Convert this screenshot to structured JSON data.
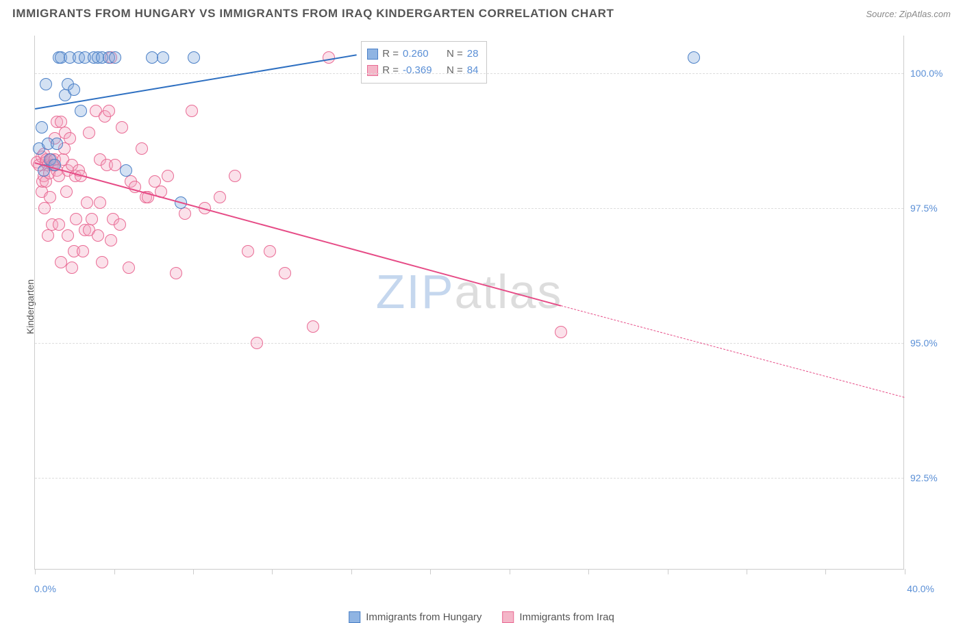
{
  "header": {
    "title": "IMMIGRANTS FROM HUNGARY VS IMMIGRANTS FROM IRAQ KINDERGARTEN CORRELATION CHART",
    "source_prefix": "Source: ",
    "source_name": "ZipAtlas.com"
  },
  "axes": {
    "ylabel": "Kindergarten",
    "xlim": [
      0.0,
      40.0
    ],
    "ylim": [
      90.8,
      100.7
    ],
    "xtick_positions": [
      0,
      3.64,
      7.27,
      10.9,
      14.55,
      18.18,
      21.82,
      25.45,
      29.1,
      32.73,
      36.36,
      40.0
    ],
    "xtick_labels_left": "0.0%",
    "xtick_labels_right": "40.0%",
    "yticks": [
      {
        "v": 92.5,
        "label": "92.5%"
      },
      {
        "v": 95.0,
        "label": "95.0%"
      },
      {
        "v": 97.5,
        "label": "97.5%"
      },
      {
        "v": 100.0,
        "label": "100.0%"
      }
    ],
    "grid_color": "#dddddd",
    "border_color": "#cccccc",
    "tick_label_color": "#5a8fd6"
  },
  "watermark": {
    "part1": "ZIP",
    "part2": "atlas"
  },
  "legend_stats": {
    "rows": [
      {
        "swatch_fill": "#8fb4e3",
        "swatch_stroke": "#4a7fc6",
        "r_label": "R = ",
        "r_value": "0.260",
        "n_label": "N = ",
        "n_value": "28"
      },
      {
        "swatch_fill": "#f4b6c8",
        "swatch_stroke": "#e96a94",
        "r_label": "R = ",
        "r_value": "-0.369",
        "n_label": "N = ",
        "n_value": "84"
      }
    ]
  },
  "bottom_legend": {
    "items": [
      {
        "swatch_fill": "#8fb4e3",
        "swatch_stroke": "#4a7fc6",
        "label": "Immigrants from Hungary"
      },
      {
        "swatch_fill": "#f4b6c8",
        "swatch_stroke": "#e96a94",
        "label": "Immigrants from Iraq"
      }
    ]
  },
  "series": {
    "hungary": {
      "fill": "rgba(130,170,220,0.35)",
      "stroke": "#4a7fc6",
      "marker_radius": 9,
      "line_color": "#2d6fc1",
      "line_width": 2.2,
      "trend": {
        "x1": 0.0,
        "y1": 99.35,
        "x2": 14.8,
        "y2": 100.35
      },
      "points": [
        [
          0.2,
          98.6
        ],
        [
          0.3,
          99.0
        ],
        [
          0.4,
          98.2
        ],
        [
          0.5,
          99.8
        ],
        [
          0.6,
          98.7
        ],
        [
          0.7,
          98.4
        ],
        [
          0.9,
          98.3
        ],
        [
          1.0,
          98.7
        ],
        [
          1.1,
          100.3
        ],
        [
          1.2,
          100.3
        ],
        [
          1.4,
          99.6
        ],
        [
          1.5,
          99.8
        ],
        [
          1.6,
          100.3
        ],
        [
          1.8,
          99.7
        ],
        [
          2.0,
          100.3
        ],
        [
          2.1,
          99.3
        ],
        [
          2.3,
          100.3
        ],
        [
          2.7,
          100.3
        ],
        [
          2.9,
          100.3
        ],
        [
          3.1,
          100.3
        ],
        [
          3.4,
          100.3
        ],
        [
          3.7,
          100.3
        ],
        [
          4.2,
          98.2
        ],
        [
          5.4,
          100.3
        ],
        [
          5.9,
          100.3
        ],
        [
          6.7,
          97.6
        ],
        [
          7.3,
          100.3
        ],
        [
          30.3,
          100.3
        ]
      ]
    },
    "iraq": {
      "fill": "rgba(244,168,194,0.35)",
      "stroke": "#e96a94",
      "marker_radius": 9,
      "line_color": "#e64b86",
      "line_width": 2.2,
      "trend_solid": {
        "x1": 0.0,
        "y1": 98.35,
        "x2": 24.2,
        "y2": 95.7
      },
      "trend_dashed": {
        "x1": 24.2,
        "y1": 95.7,
        "x2": 40.0,
        "y2": 94.0
      },
      "points": [
        [
          0.1,
          98.35
        ],
        [
          0.2,
          98.3
        ],
        [
          0.3,
          97.8
        ],
        [
          0.3,
          98.45
        ],
        [
          0.35,
          98.0
        ],
        [
          0.4,
          98.1
        ],
        [
          0.4,
          98.5
        ],
        [
          0.45,
          97.5
        ],
        [
          0.5,
          98.35
        ],
        [
          0.5,
          98.0
        ],
        [
          0.55,
          98.4
        ],
        [
          0.6,
          97.0
        ],
        [
          0.6,
          98.3
        ],
        [
          0.65,
          98.15
        ],
        [
          0.7,
          98.4
        ],
        [
          0.7,
          97.7
        ],
        [
          0.75,
          98.4
        ],
        [
          0.8,
          98.3
        ],
        [
          0.8,
          97.2
        ],
        [
          0.85,
          98.3
        ],
        [
          0.9,
          98.4
        ],
        [
          0.9,
          98.8
        ],
        [
          1.0,
          98.2
        ],
        [
          1.0,
          99.1
        ],
        [
          1.1,
          97.2
        ],
        [
          1.1,
          98.1
        ],
        [
          1.2,
          99.1
        ],
        [
          1.2,
          96.5
        ],
        [
          1.3,
          98.4
        ],
        [
          1.35,
          98.6
        ],
        [
          1.4,
          98.9
        ],
        [
          1.45,
          97.8
        ],
        [
          1.5,
          98.2
        ],
        [
          1.5,
          97.0
        ],
        [
          1.6,
          98.8
        ],
        [
          1.7,
          96.4
        ],
        [
          1.7,
          98.3
        ],
        [
          1.8,
          96.7
        ],
        [
          1.85,
          98.1
        ],
        [
          1.9,
          97.3
        ],
        [
          2.0,
          98.2
        ],
        [
          2.1,
          98.1
        ],
        [
          2.2,
          96.7
        ],
        [
          2.3,
          97.1
        ],
        [
          2.4,
          97.6
        ],
        [
          2.5,
          98.9
        ],
        [
          2.5,
          97.1
        ],
        [
          2.6,
          97.3
        ],
        [
          2.8,
          99.3
        ],
        [
          2.9,
          97.0
        ],
        [
          3.0,
          98.4
        ],
        [
          3.0,
          97.6
        ],
        [
          3.1,
          96.5
        ],
        [
          3.2,
          99.2
        ],
        [
          3.3,
          98.3
        ],
        [
          3.4,
          99.3
        ],
        [
          3.5,
          96.9
        ],
        [
          3.5,
          100.3
        ],
        [
          3.6,
          97.3
        ],
        [
          3.7,
          98.3
        ],
        [
          3.9,
          97.2
        ],
        [
          4.0,
          99.0
        ],
        [
          4.3,
          96.4
        ],
        [
          4.4,
          98.0
        ],
        [
          4.6,
          97.9
        ],
        [
          4.9,
          98.6
        ],
        [
          5.1,
          97.7
        ],
        [
          5.2,
          97.7
        ],
        [
          5.5,
          98.0
        ],
        [
          5.8,
          97.8
        ],
        [
          6.1,
          98.1
        ],
        [
          6.5,
          96.3
        ],
        [
          6.9,
          97.4
        ],
        [
          7.2,
          99.3
        ],
        [
          7.8,
          97.5
        ],
        [
          8.5,
          97.7
        ],
        [
          9.2,
          98.1
        ],
        [
          9.8,
          96.7
        ],
        [
          10.2,
          95.0
        ],
        [
          10.8,
          96.7
        ],
        [
          11.5,
          96.3
        ],
        [
          12.8,
          95.3
        ],
        [
          13.5,
          100.3
        ],
        [
          24.2,
          95.2
        ]
      ]
    }
  },
  "styling": {
    "background": "#ffffff",
    "title_color": "#555555",
    "title_fontsize": 17,
    "source_color": "#888888"
  }
}
